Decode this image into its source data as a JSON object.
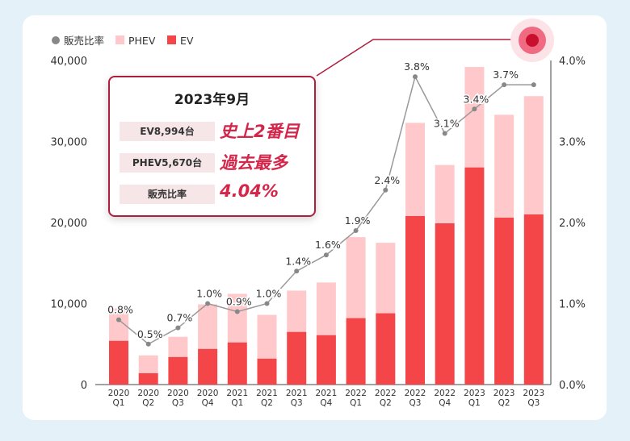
{
  "legend": [
    {
      "label": "販売比率",
      "color": "#888888",
      "shape": "circle"
    },
    {
      "label": "PHEV",
      "color": "#ffc9cc",
      "shape": "square"
    },
    {
      "label": "EV",
      "color": "#f44549",
      "shape": "square"
    }
  ],
  "callout": {
    "date": "2023年9月",
    "rows": [
      {
        "label": "EV8,994台",
        "value": "史上2番目"
      },
      {
        "label": "PHEV5,670台",
        "value": "過去最多"
      },
      {
        "label": "販売比率",
        "value": "4.04%"
      }
    ]
  },
  "colors": {
    "ev": "#f44549",
    "phev": "#ffc9cc",
    "ratio_line": "#999999",
    "accent": "#d4264a",
    "callout_border": "#b01e3f"
  },
  "chart_data": {
    "type": "bar",
    "stacked": true,
    "categories": [
      "2020 Q1",
      "2020 Q2",
      "2020 Q3",
      "2020 Q4",
      "2021 Q1",
      "2021 Q2",
      "2021 Q3",
      "2021 Q4",
      "2022 Q1",
      "2022 Q2",
      "2022 Q3",
      "2022 Q4",
      "2023 Q1",
      "2023 Q2",
      "2023 Q3"
    ],
    "category_labels": [
      [
        "2020",
        "Q1"
      ],
      [
        "2020",
        "Q2"
      ],
      [
        "2020",
        "Q3"
      ],
      [
        "2020",
        "Q4"
      ],
      [
        "2021",
        "Q1"
      ],
      [
        "2021",
        "Q2"
      ],
      [
        "2021",
        "Q3"
      ],
      [
        "2021",
        "Q4"
      ],
      [
        "2022",
        "Q1"
      ],
      [
        "2022",
        "Q2"
      ],
      [
        "2022",
        "Q3"
      ],
      [
        "2022",
        "Q4"
      ],
      [
        "2023",
        "Q1"
      ],
      [
        "2023",
        "Q2"
      ],
      [
        "2023",
        "Q3"
      ]
    ],
    "series": [
      {
        "name": "EV",
        "values": [
          5400,
          1400,
          3400,
          4400,
          5200,
          3200,
          6500,
          6100,
          8200,
          8800,
          20800,
          19900,
          26800,
          20600,
          21000
        ]
      },
      {
        "name": "PHEV",
        "values": [
          4000,
          2200,
          2500,
          5500,
          6000,
          5400,
          5100,
          6500,
          10000,
          8700,
          11500,
          7200,
          12400,
          12700,
          14600
        ]
      }
    ],
    "line_series": {
      "name": "販売比率",
      "values": [
        0.8,
        0.5,
        0.7,
        1.0,
        0.9,
        1.0,
        1.4,
        1.6,
        1.9,
        2.4,
        3.8,
        3.1,
        3.4,
        3.7,
        3.7
      ],
      "labels": [
        "0.8%",
        "0.5%",
        "0.7%",
        "1.0%",
        "0.9%",
        "1.0%",
        "1.4%",
        "1.6%",
        "1.9%",
        "2.4%",
        "3.8%",
        "3.1%",
        "3.4%",
        "3.7%",
        ""
      ]
    },
    "y_left": {
      "ylim": [
        0,
        40000
      ],
      "ticks": [
        "0",
        "10,000",
        "20,000",
        "30,000",
        "40,000"
      ]
    },
    "y_right": {
      "ylim": [
        0,
        4.0
      ],
      "ticks": [
        "0.0%",
        "1.0%",
        "2.0%",
        "3.0%",
        "4.0%"
      ]
    },
    "grid": false,
    "legend_position": "top-left"
  }
}
